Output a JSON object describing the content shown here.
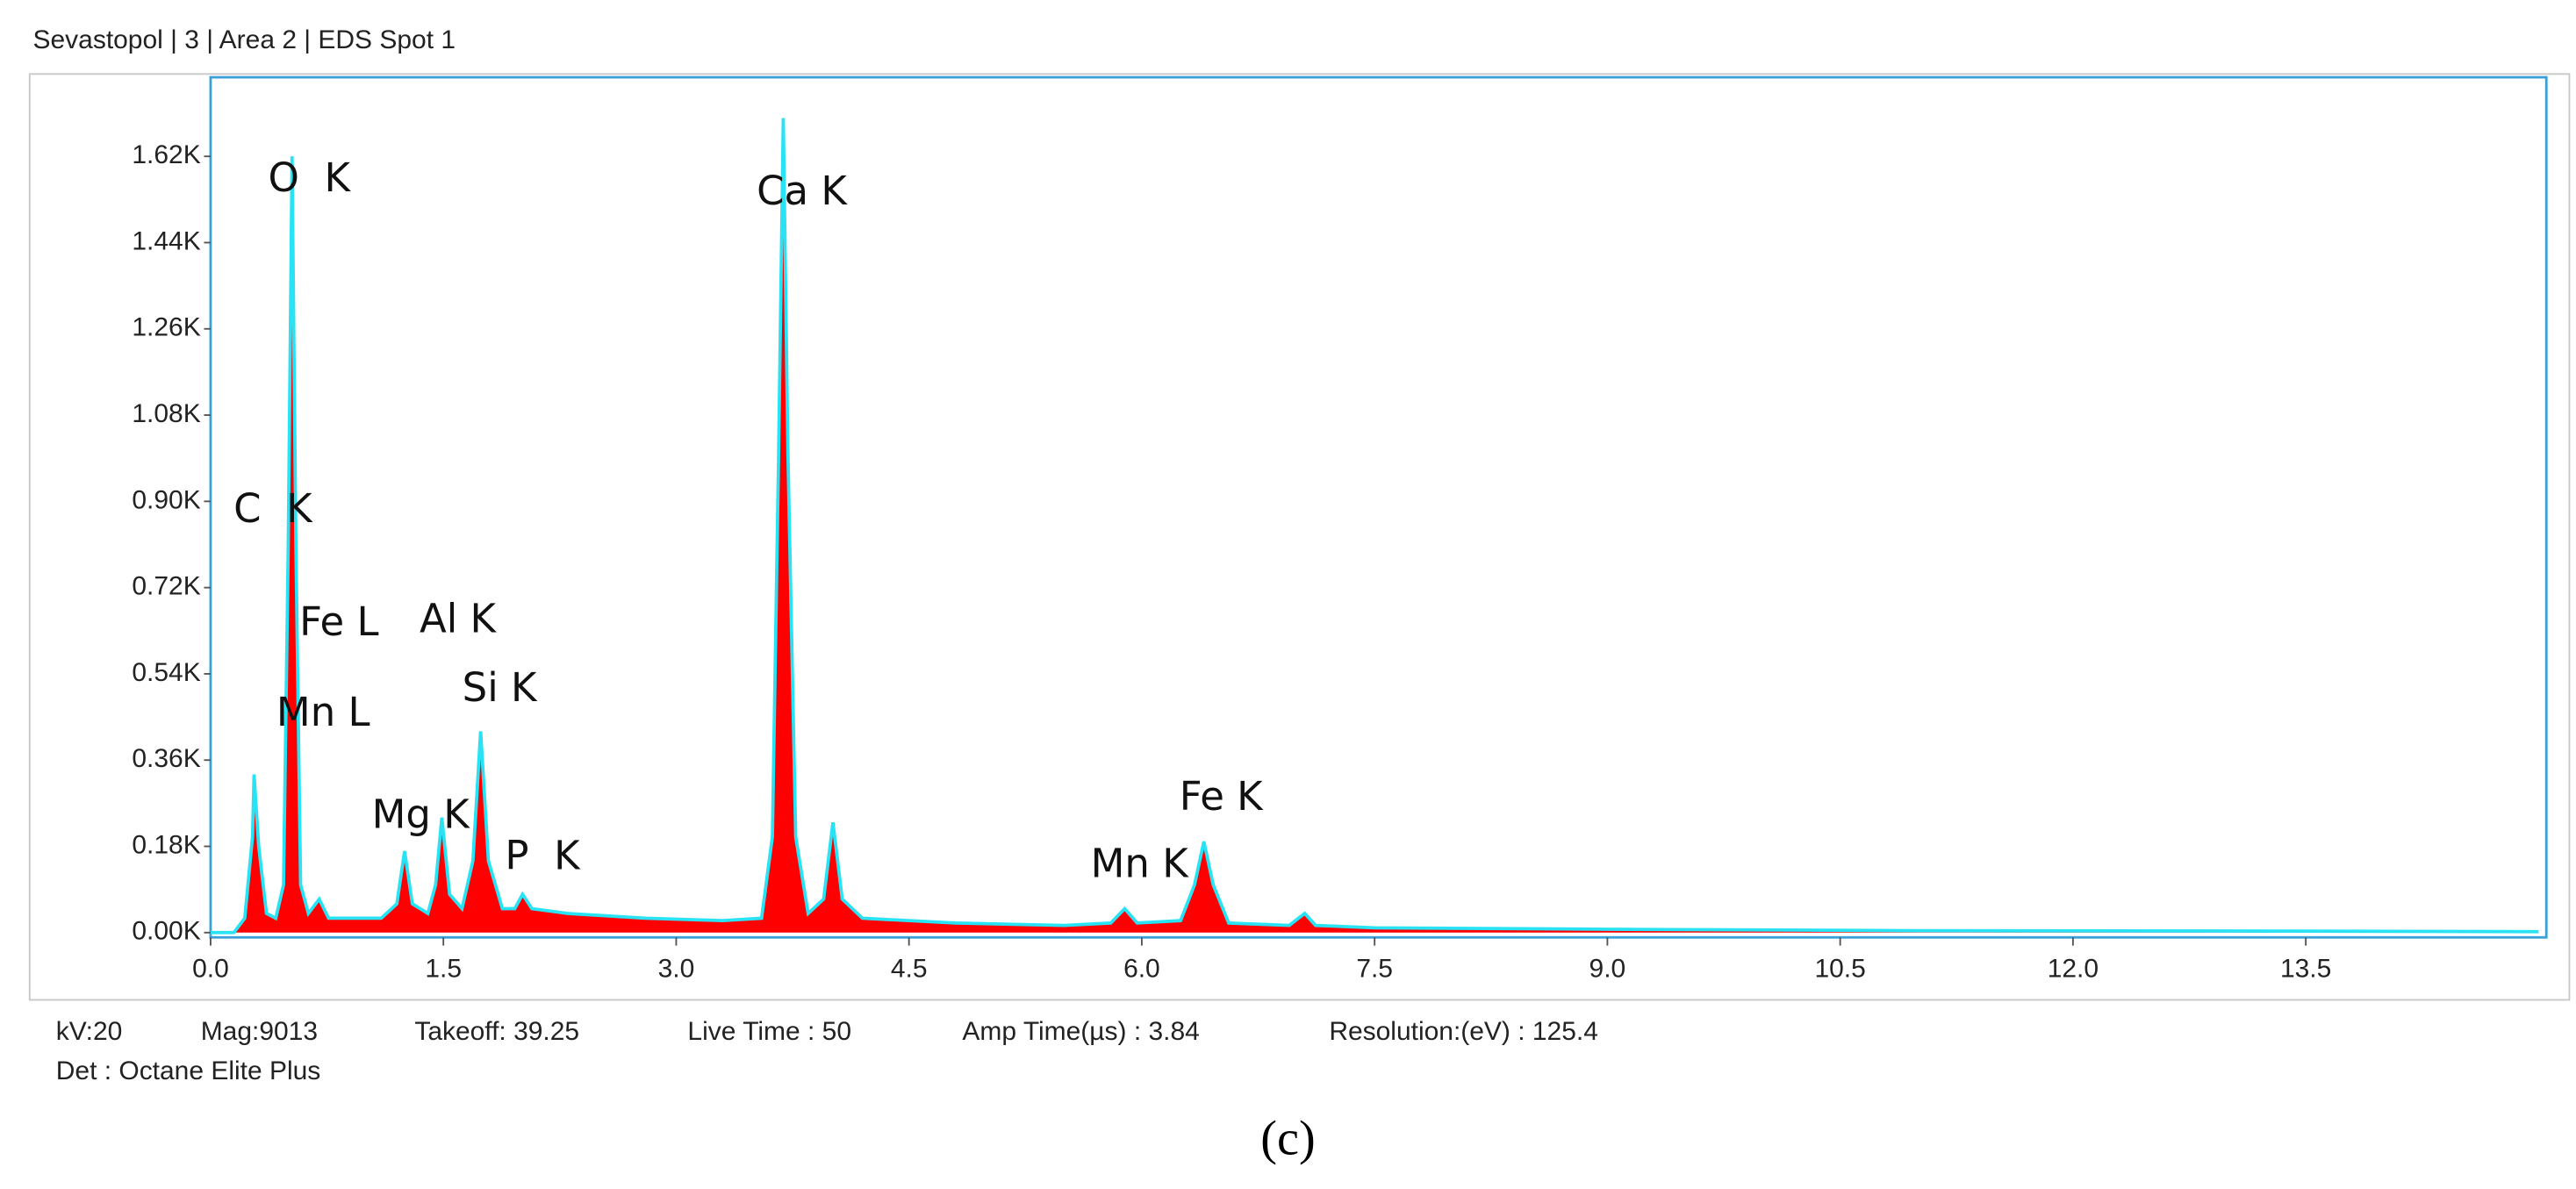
{
  "chart_data": {
    "type": "area",
    "title": "Sevastopol | 3 | Area 2 | EDS Spot 1",
    "x": [
      0.0,
      0.15,
      0.22,
      0.27,
      0.28,
      0.31,
      0.36,
      0.42,
      0.47,
      0.5,
      0.525,
      0.55,
      0.58,
      0.63,
      0.7,
      0.76,
      0.9,
      1.1,
      1.2,
      1.25,
      1.3,
      1.4,
      1.45,
      1.49,
      1.54,
      1.62,
      1.69,
      1.74,
      1.79,
      1.88,
      1.96,
      2.01,
      2.07,
      2.3,
      2.8,
      3.3,
      3.55,
      3.62,
      3.66,
      3.69,
      3.72,
      3.77,
      3.85,
      3.95,
      4.01,
      4.07,
      4.2,
      4.8,
      5.5,
      5.8,
      5.89,
      5.97,
      6.25,
      6.34,
      6.4,
      6.46,
      6.56,
      6.95,
      7.05,
      7.12,
      7.5,
      9,
      11,
      13.5,
      15.0
    ],
    "values": [
      0,
      0.0,
      0.03,
      0.2,
      0.33,
      0.18,
      0.04,
      0.03,
      0.1,
      0.8,
      1.62,
      0.8,
      0.1,
      0.04,
      0.07,
      0.03,
      0.03,
      0.03,
      0.06,
      0.17,
      0.06,
      0.04,
      0.1,
      0.24,
      0.08,
      0.05,
      0.15,
      0.42,
      0.15,
      0.05,
      0.05,
      0.08,
      0.05,
      0.04,
      0.03,
      0.025,
      0.03,
      0.2,
      1.0,
      1.7,
      1.0,
      0.2,
      0.04,
      0.07,
      0.23,
      0.07,
      0.03,
      0.02,
      0.015,
      0.02,
      0.05,
      0.02,
      0.025,
      0.1,
      0.19,
      0.1,
      0.02,
      0.015,
      0.04,
      0.015,
      0.01,
      0.007,
      0.004,
      0.003,
      0.002
    ],
    "color": "#29e3f5",
    "fill": "#ff0000",
    "xlim": [
      0,
      15.05
    ],
    "ylim": [
      -0.01,
      1.785
    ],
    "xticks": [
      {
        "value": 0,
        "label": "0.0"
      },
      1.5,
      {
        "value": 3,
        "label": "3.0"
      },
      4.5,
      {
        "value": 6,
        "label": "6.0"
      },
      7.5,
      {
        "value": 9,
        "label": "9.0"
      },
      10.5,
      {
        "value": 12,
        "label": "12.0"
      },
      13.5
    ],
    "yticks": [
      {
        "value": 0,
        "label": "0.00K"
      },
      {
        "value": 0.18,
        "label": "0.18K"
      },
      {
        "value": 0.36,
        "label": "0.36K"
      },
      {
        "value": 0.54,
        "label": "0.54K"
      },
      {
        "value": 0.72,
        "label": "0.72K"
      },
      {
        "value": 0.9,
        "label": "0.90K"
      },
      {
        "value": 1.08,
        "label": "1.08K"
      },
      {
        "value": 1.26,
        "label": "1.26K"
      },
      {
        "value": 1.44,
        "label": "1.44K"
      },
      {
        "value": 1.62,
        "label": "1.62K"
      }
    ],
    "annotations": [
      "O  K",
      "Ca K",
      "C  K",
      "Fe L",
      "Al K",
      "Si K",
      "Mn L",
      "Mg K",
      "P  K",
      "Mn K",
      "Fe K"
    ],
    "info": [
      "kV:20",
      "Mag:9013",
      "Takeoff: 39.25",
      "Live Time : 50",
      "Amp Time(µs) : 3.84",
      "Resolution:(eV) : 125.4"
    ],
    "detector": "Det : Octane Elite Plus",
    "caption": "(c)"
  }
}
